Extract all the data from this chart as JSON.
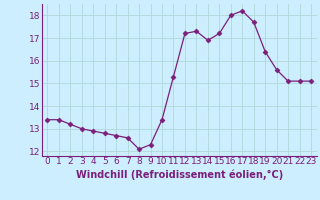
{
  "x": [
    0,
    1,
    2,
    3,
    4,
    5,
    6,
    7,
    8,
    9,
    10,
    11,
    12,
    13,
    14,
    15,
    16,
    17,
    18,
    19,
    20,
    21,
    22,
    23
  ],
  "y": [
    13.4,
    13.4,
    13.2,
    13.0,
    12.9,
    12.8,
    12.7,
    12.6,
    12.1,
    12.3,
    13.4,
    15.3,
    17.2,
    17.3,
    16.9,
    17.2,
    18.0,
    18.2,
    17.7,
    16.4,
    15.6,
    15.1,
    15.1,
    15.1
  ],
  "line_color": "#7B1F7B",
  "marker": "D",
  "marker_size": 2.5,
  "background_color": "#cceeff",
  "grid_color": "#b0d8d8",
  "xlabel": "Windchill (Refroidissement éolien,°C)",
  "xlabel_color": "#7B1F7B",
  "tick_color": "#7B1F7B",
  "ylim": [
    11.8,
    18.5
  ],
  "xlim": [
    -0.5,
    23.5
  ],
  "yticks": [
    12,
    13,
    14,
    15,
    16,
    17,
    18
  ],
  "xticks": [
    0,
    1,
    2,
    3,
    4,
    5,
    6,
    7,
    8,
    9,
    10,
    11,
    12,
    13,
    14,
    15,
    16,
    17,
    18,
    19,
    20,
    21,
    22,
    23
  ],
  "tick_fontsize": 6.5,
  "xlabel_fontsize": 7.0
}
